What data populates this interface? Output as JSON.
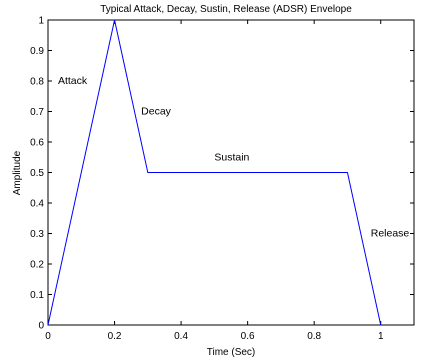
{
  "chart_data": {
    "type": "line",
    "title": "Typical Attack, Decay, Sustin, Release (ADSR) Envelope",
    "xlabel": "Time (Sec)",
    "ylabel": "Amplitude",
    "xlim": [
      0,
      1.1
    ],
    "ylim": [
      0,
      1
    ],
    "xticks": [
      0,
      0.2,
      0.4,
      0.6,
      0.8,
      1
    ],
    "xtick_labels": [
      "0",
      "0.2",
      "0.4",
      "0.6",
      "0.8",
      "1"
    ],
    "yticks": [
      0,
      0.1,
      0.2,
      0.3,
      0.4,
      0.5,
      0.6,
      0.7,
      0.8,
      0.9,
      1
    ],
    "ytick_labels": [
      "0",
      "0.1",
      "0.2",
      "0.3",
      "0.4",
      "0.5",
      "0.6",
      "0.7",
      "0.8",
      "0.9",
      "1"
    ],
    "grid": false,
    "series": [
      {
        "color": "#0000ff",
        "x": [
          0,
          0.2,
          0.3,
          0.9,
          1.0
        ],
        "y": [
          0,
          1,
          0.5,
          0.5,
          0
        ]
      }
    ],
    "annotations": [
      {
        "text": "Attack",
        "x": 0.03,
        "y": 0.79
      },
      {
        "text": "Decay",
        "x": 0.28,
        "y": 0.69
      },
      {
        "text": "Sustain",
        "x": 0.5,
        "y": 0.54
      },
      {
        "text": "Release",
        "x": 0.97,
        "y": 0.29
      }
    ]
  }
}
